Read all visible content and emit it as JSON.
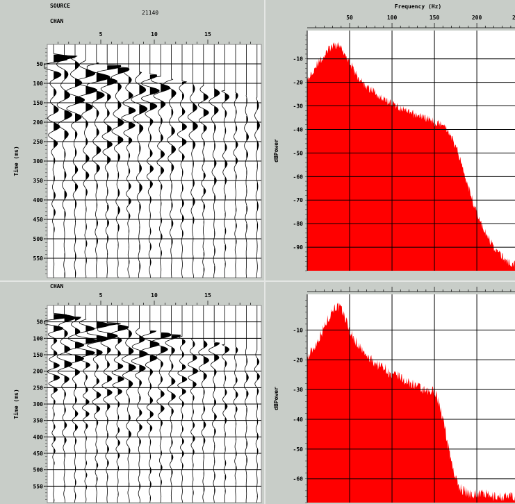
{
  "header": {
    "source_label": "SOURCE",
    "source_value": "21140",
    "chan_label": "CHAN"
  },
  "bottom_header": {
    "chan_label": "CHAN"
  },
  "chart_data": [
    {
      "type": "seismic-wiggle",
      "panel": "top-left",
      "xlabel": "CHAN",
      "ylabel": "Time (ms)",
      "x_ticks": [
        5,
        10,
        15
      ],
      "xlim": [
        0,
        20
      ],
      "y_ticks": [
        50,
        100,
        150,
        200,
        250,
        300,
        350,
        400,
        450,
        500,
        550
      ],
      "ylim": [
        0,
        600
      ],
      "traces": 20
    },
    {
      "type": "area",
      "panel": "top-right",
      "xlabel": "Frequency (Hz)",
      "ylabel": "dBPower",
      "x_ticks": [
        50,
        100,
        150,
        200
      ],
      "x_tick_partial": "2",
      "xlim": [
        0,
        245
      ],
      "y_ticks": [
        -10,
        -20,
        -30,
        -40,
        -50,
        -60,
        -70,
        -80,
        -90
      ],
      "ylim": [
        -100,
        2
      ],
      "color": "#ff0000",
      "x": [
        0,
        5,
        10,
        15,
        20,
        25,
        30,
        35,
        40,
        45,
        50,
        55,
        60,
        65,
        70,
        75,
        80,
        85,
        90,
        95,
        100,
        105,
        110,
        115,
        120,
        125,
        130,
        135,
        140,
        145,
        150,
        155,
        160,
        165,
        170,
        175,
        180,
        185,
        190,
        195,
        200,
        205,
        210,
        215,
        220,
        225,
        230,
        235,
        240,
        245
      ],
      "values": [
        -20,
        -16,
        -13,
        -11,
        -9,
        -6,
        -5,
        -4,
        -5,
        -8,
        -11,
        -15,
        -18,
        -20,
        -22,
        -23,
        -24,
        -26,
        -27,
        -28,
        -29,
        -30,
        -31,
        -32,
        -33,
        -33.5,
        -34,
        -34.5,
        -35,
        -36,
        -37,
        -37.5,
        -37,
        -40,
        -43,
        -47,
        -52,
        -58,
        -64,
        -70,
        -75,
        -80,
        -84,
        -87,
        -90,
        -92,
        -94,
        -96,
        -97,
        -97
      ]
    },
    {
      "type": "seismic-wiggle",
      "panel": "bottom-left",
      "xlabel": "CHAN",
      "ylabel": "Time (ms)",
      "x_ticks": [
        5,
        10,
        15
      ],
      "xlim": [
        0,
        20
      ],
      "y_ticks": [
        50,
        100,
        150,
        200,
        250,
        300,
        350,
        400,
        450,
        500,
        550
      ],
      "ylim": [
        0,
        600
      ],
      "traces": 20
    },
    {
      "type": "area",
      "panel": "bottom-right",
      "xlabel": "",
      "ylabel": "dBPower",
      "x_ticks": [],
      "xlim": [
        0,
        245
      ],
      "y_ticks": [
        -10,
        -20,
        -30,
        -40,
        -50,
        -60
      ],
      "ylim": [
        -68,
        2
      ],
      "color": "#ff0000",
      "x": [
        0,
        5,
        10,
        15,
        20,
        25,
        30,
        35,
        40,
        45,
        50,
        55,
        60,
        65,
        70,
        75,
        80,
        85,
        90,
        95,
        100,
        105,
        110,
        115,
        120,
        125,
        130,
        135,
        140,
        145,
        150,
        155,
        160,
        165,
        170,
        175,
        180,
        185,
        190,
        195,
        200,
        205,
        210,
        215,
        220,
        225,
        230,
        235,
        240,
        245
      ],
      "values": [
        -20,
        -17,
        -15,
        -12,
        -9,
        -6,
        -3,
        -2,
        -3,
        -6,
        -10,
        -13,
        -15,
        -17,
        -19,
        -20,
        -21,
        -22,
        -22,
        -24,
        -26,
        -25,
        -26,
        -27,
        -28,
        -28,
        -29,
        -30,
        -31,
        -31,
        -30,
        -34,
        -40,
        -47,
        -54,
        -60,
        -63,
        -64,
        -65,
        -65,
        -65,
        -65,
        -65,
        -66,
        -66,
        -66,
        -66,
        -66,
        -66,
        -66
      ]
    }
  ]
}
